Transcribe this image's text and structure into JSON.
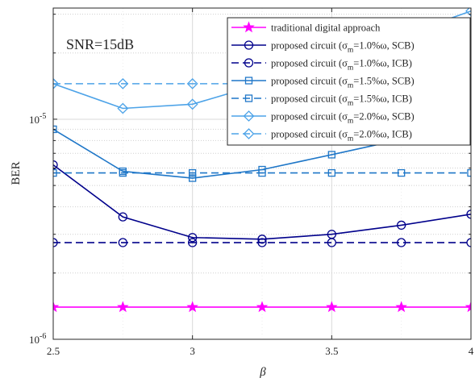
{
  "chart_data": {
    "type": "line",
    "xlabel": "β",
    "ylabel": "BER",
    "annotation": "SNR=15dB",
    "x": [
      2.5,
      2.75,
      3.0,
      3.25,
      3.5,
      3.75,
      4.0
    ],
    "xlim": [
      2.5,
      4.0
    ],
    "ylim": [
      1e-06,
      3.2e-05
    ],
    "yscale": "log",
    "grid": true,
    "legend_position": "top-right",
    "xtick_labels": [
      "2.5",
      "3",
      "3.5",
      "4"
    ],
    "ytick_labels": [
      {
        "base": "10",
        "exp": "-6"
      },
      {
        "base": "10",
        "exp": "-5"
      }
    ],
    "series": [
      {
        "name": "traditional digital approach",
        "legend_prefix": "",
        "legend_sub": "",
        "legend_suffix": "",
        "color": "#ff00ff",
        "dash": "solid",
        "marker": "star",
        "values": [
          1.4e-06,
          1.4e-06,
          1.4e-06,
          1.4e-06,
          1.4e-06,
          1.4e-06,
          1.4e-06
        ]
      },
      {
        "name": "proposed circuit (σm=1.0%ω, SCB)",
        "legend_prefix": "proposed circuit (σ",
        "legend_sub": "m",
        "legend_suffix": "=1.0%ω, SCB)",
        "color": "#00008b",
        "dash": "solid",
        "marker": "circle",
        "values": [
          6.2e-06,
          3.6e-06,
          2.9e-06,
          2.85e-06,
          3e-06,
          3.3e-06,
          3.7e-06
        ]
      },
      {
        "name": "proposed circuit (σm=1.0%ω, ICB)",
        "legend_prefix": "proposed circuit (σ",
        "legend_sub": "m",
        "legend_suffix": "=1.0%ω, ICB)",
        "color": "#00008b",
        "dash": "dashed",
        "marker": "circle",
        "values": [
          2.75e-06,
          2.75e-06,
          2.75e-06,
          2.75e-06,
          2.75e-06,
          2.75e-06,
          2.75e-06
        ]
      },
      {
        "name": "proposed circuit (σm=1.5%ω, SCB)",
        "legend_prefix": "proposed circuit (σ",
        "legend_sub": "m",
        "legend_suffix": "=1.5%ω, SCB)",
        "color": "#1f77c8",
        "dash": "solid",
        "marker": "square",
        "values": [
          9e-06,
          5.8e-06,
          5.4e-06,
          5.9e-06,
          6.9e-06,
          8.1e-06,
          1.02e-05
        ]
      },
      {
        "name": "proposed circuit (σm=1.5%ω, ICB)",
        "legend_prefix": "proposed circuit (σ",
        "legend_sub": "m",
        "legend_suffix": "=1.5%ω, ICB)",
        "color": "#1f77c8",
        "dash": "dashed",
        "marker": "square",
        "values": [
          5.7e-06,
          5.7e-06,
          5.7e-06,
          5.7e-06,
          5.7e-06,
          5.7e-06,
          5.7e-06
        ]
      },
      {
        "name": "proposed circuit (σm=2.0%ω, SCB)",
        "legend_prefix": "proposed circuit (σ",
        "legend_sub": "m",
        "legend_suffix": "=2.0%ω, SCB)",
        "color": "#4da3e8",
        "dash": "solid",
        "marker": "diamond",
        "values": [
          1.45e-05,
          1.12e-05,
          1.17e-05,
          1.45e-05,
          1.9e-05,
          2.4e-05,
          3.1e-05
        ]
      },
      {
        "name": "proposed circuit (σm=2.0%ω, ICB)",
        "legend_prefix": "proposed circuit (σ",
        "legend_sub": "m",
        "legend_suffix": "=2.0%ω, ICB)",
        "color": "#4da3e8",
        "dash": "dashed",
        "marker": "diamond",
        "values": [
          1.45e-05,
          1.45e-05,
          1.45e-05,
          1.45e-05,
          1.45e-05,
          1.45e-05,
          1.45e-05
        ]
      }
    ]
  }
}
